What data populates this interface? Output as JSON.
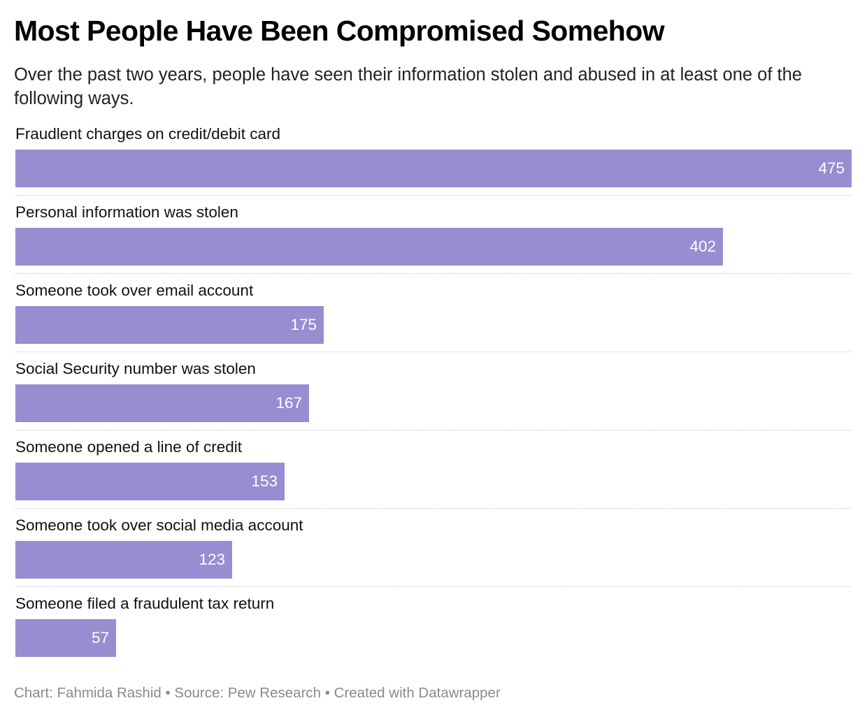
{
  "title": "Most People Have Been Compromised Somehow",
  "subtitle": "Over the past two years, people have seen their information stolen and abused in at least one of the following ways.",
  "footer": {
    "chart_credit": "Chart: Fahmida Rashid",
    "separator": "•",
    "source": "Source: Pew Research",
    "tool": "Created with Datawrapper"
  },
  "colors": {
    "bar": "#978dd0",
    "value_text": "#ffffff",
    "footer_text": "#8a8a8a"
  },
  "chart_data": {
    "type": "bar",
    "orientation": "horizontal",
    "title": "Most People Have Been Compromised Somehow",
    "categories": [
      "Fraudlent charges on credit/debit card",
      "Personal information was stolen",
      "Someone took over email account",
      "Social Security number was stolen",
      "Someone opened a line of credit",
      "Someone took over social media account",
      "Someone filed a fraudulent tax return"
    ],
    "values": [
      475,
      402,
      175,
      167,
      153,
      123,
      57
    ],
    "xlim": [
      0,
      475
    ],
    "grid": false,
    "legend": "none",
    "data_labels": "inside-end"
  }
}
